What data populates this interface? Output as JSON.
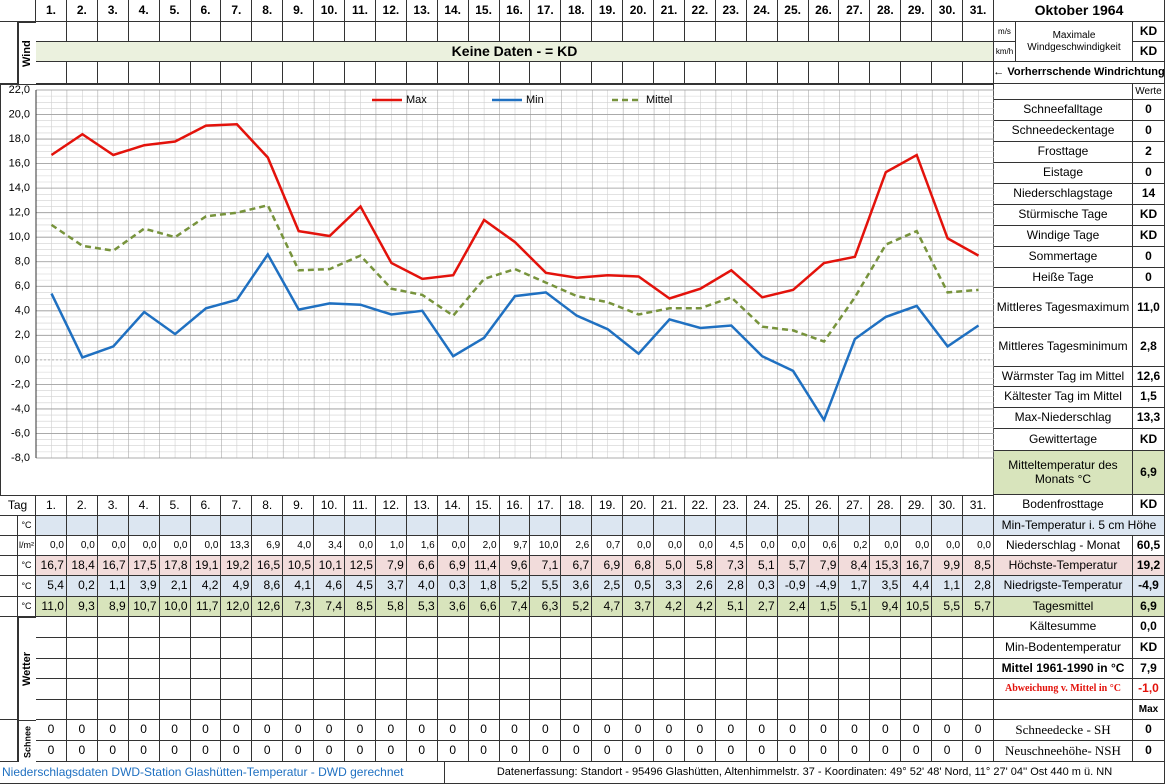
{
  "header": {
    "title": "Oktober 1964",
    "tag_label": "Tag"
  },
  "wind": {
    "label": "Wind",
    "no_data": "Keine Daten -  = KD",
    "units": [
      "m/s",
      "km/h"
    ],
    "max_label": "Maximale Windgeschwindigkeit",
    "values": [
      "KD",
      "KD"
    ],
    "direction": "← Vorherrschende Windrichtung"
  },
  "chart_data": {
    "type": "line",
    "categories": [
      "1.",
      "2.",
      "3.",
      "4.",
      "5.",
      "6.",
      "7.",
      "8.",
      "9.",
      "10.",
      "11.",
      "12.",
      "13.",
      "14.",
      "15.",
      "16.",
      "17.",
      "18.",
      "19.",
      "20.",
      "21.",
      "22.",
      "23.",
      "24.",
      "25.",
      "26.",
      "27.",
      "28.",
      "29.",
      "30.",
      "31."
    ],
    "ylim": [
      -8,
      22
    ],
    "yticks": [
      {
        "value": -8,
        "label": "-8,0"
      },
      {
        "value": -6,
        "label": "-6,0"
      },
      {
        "value": -4,
        "label": "-4,0"
      },
      {
        "value": -2,
        "label": "-2,0"
      },
      {
        "value": 0,
        "label": "0,0"
      },
      {
        "value": 2,
        "label": "2,0"
      },
      {
        "value": 4,
        "label": "4,0"
      },
      {
        "value": 6,
        "label": "6,0"
      },
      {
        "value": 8,
        "label": "8,0"
      },
      {
        "value": 10,
        "label": "10,0"
      },
      {
        "value": 12,
        "label": "12,0"
      },
      {
        "value": 14,
        "label": "14,0"
      },
      {
        "value": 16,
        "label": "16,0"
      },
      {
        "value": 18,
        "label": "18,0"
      },
      {
        "value": 20,
        "label": "20,0"
      },
      {
        "value": 22,
        "label": "22,0"
      }
    ],
    "grid": true,
    "series": [
      {
        "name": "Max",
        "color": "#e3120b",
        "line_style": "solid",
        "values": [
          16.7,
          18.4,
          16.7,
          17.5,
          17.8,
          19.1,
          19.2,
          16.5,
          10.5,
          10.1,
          12.5,
          7.9,
          6.6,
          6.9,
          11.4,
          9.6,
          7.1,
          6.7,
          6.9,
          6.8,
          5.0,
          5.8,
          7.3,
          5.1,
          5.7,
          7.9,
          8.4,
          15.3,
          16.7,
          9.9,
          8.5
        ],
        "value_labels": [
          "16,7",
          "18,4",
          "16,7",
          "17,5",
          "17,8",
          "19,1",
          "19,2",
          "16,5",
          "10,5",
          "10,1",
          "12,5",
          "7,9",
          "6,6",
          "6,9",
          "11,4",
          "9,6",
          "7,1",
          "6,7",
          "6,9",
          "6,8",
          "5,0",
          "5,8",
          "7,3",
          "5,1",
          "5,7",
          "7,9",
          "8,4",
          "15,3",
          "16,7",
          "9,9",
          "8,5"
        ]
      },
      {
        "name": "Min",
        "color": "#1f70c1",
        "line_style": "solid",
        "values": [
          5.4,
          0.2,
          1.1,
          3.9,
          2.1,
          4.2,
          4.9,
          8.6,
          4.1,
          4.6,
          4.5,
          3.7,
          4.0,
          0.3,
          1.8,
          5.2,
          5.5,
          3.6,
          2.5,
          0.5,
          3.3,
          2.6,
          2.8,
          0.3,
          -0.9,
          -4.9,
          1.7,
          3.5,
          4.4,
          1.1,
          2.8
        ],
        "value_labels": [
          "5,4",
          "0,2",
          "1,1",
          "3,9",
          "2,1",
          "4,2",
          "4,9",
          "8,6",
          "4,1",
          "4,6",
          "4,5",
          "3,7",
          "4,0",
          "0,3",
          "1,8",
          "5,2",
          "5,5",
          "3,6",
          "2,5",
          "0,5",
          "3,3",
          "2,6",
          "2,8",
          "0,3",
          "-0,9",
          "-4,9",
          "1,7",
          "3,5",
          "4,4",
          "1,1",
          "2,8"
        ]
      },
      {
        "name": "Mittel",
        "color": "#77933c",
        "line_style": "dashed",
        "values": [
          11.0,
          9.3,
          8.9,
          10.7,
          10.0,
          11.7,
          12.0,
          12.6,
          7.3,
          7.4,
          8.5,
          5.8,
          5.3,
          3.6,
          6.6,
          7.4,
          6.3,
          5.2,
          4.7,
          3.7,
          4.2,
          4.2,
          5.1,
          2.7,
          2.4,
          1.5,
          5.1,
          9.4,
          10.5,
          5.5,
          5.7
        ],
        "value_labels": [
          "11,0",
          "9,3",
          "8,9",
          "10,7",
          "10,0",
          "11,7",
          "12,0",
          "12,6",
          "7,3",
          "7,4",
          "8,5",
          "5,8",
          "5,3",
          "3,6",
          "6,6",
          "7,4",
          "6,3",
          "5,2",
          "4,7",
          "3,7",
          "4,2",
          "4,2",
          "5,1",
          "2,7",
          "2,4",
          "1,5",
          "5,1",
          "9,4",
          "10,5",
          "5,5",
          "5,7"
        ]
      }
    ]
  },
  "stats": {
    "header": "Werte",
    "rows": [
      {
        "label": "Schneefalltage",
        "value": "0"
      },
      {
        "label": "Schneedeckentage",
        "value": "0"
      },
      {
        "label": "Frosttage",
        "value": "2"
      },
      {
        "label": "Eistage",
        "value": "0"
      },
      {
        "label": "Niederschlagstage",
        "value": "14"
      },
      {
        "label": "Stürmische Tage",
        "value": "KD"
      },
      {
        "label": "Windige Tage",
        "value": "KD"
      },
      {
        "label": "Sommertage",
        "value": "0"
      },
      {
        "label": "Heiße Tage",
        "value": "0"
      },
      {
        "label": "Mittleres Tagesmaximum",
        "value": "11,0"
      },
      {
        "label": "Mittleres Tagesminimum",
        "value": "2,8"
      },
      {
        "label": "Wärmster Tag im Mittel",
        "value": "12,6"
      },
      {
        "label": "Kältester Tag im Mittel",
        "value": "1,5"
      },
      {
        "label": "Max-Niederschlag",
        "value": "13,3"
      },
      {
        "label": "Gewittertage",
        "value": "KD"
      },
      {
        "label": "Mitteltemperatur des Monats °C",
        "value": "6,9"
      },
      {
        "label": "Bodenfrosttage",
        "value": "KD"
      }
    ]
  },
  "table": {
    "units": [
      "°C",
      "l/m²",
      "°C",
      "°C",
      "°C"
    ],
    "precipitation": [
      "0,0",
      "0,0",
      "0,0",
      "0,0",
      "0,0",
      "0,0",
      "13,3",
      "6,9",
      "4,0",
      "3,4",
      "0,0",
      "1,0",
      "1,6",
      "0,0",
      "2,0",
      "9,7",
      "10,0",
      "2,6",
      "0,7",
      "0,0",
      "0,0",
      "0,0",
      "4,5",
      "0,0",
      "0,0",
      "0,6",
      "0,2",
      "0,0",
      "0,0",
      "0,0",
      "0,0"
    ],
    "weather_label": "Wetter"
  },
  "summary": [
    {
      "label": "Min-Temperatur i. 5 cm Höhe"
    },
    {
      "label": "Niederschlag - Monat",
      "value": "60,5"
    },
    {
      "label": "Höchste-Temperatur",
      "value": "19,2"
    },
    {
      "label": "Niedrigste-Temperatur",
      "value": "-4,9"
    },
    {
      "label": "Tagesmittel",
      "value": "6,9"
    },
    {
      "label": "Kältesumme",
      "value": "0,0"
    },
    {
      "label": "Min-Bodentemperatur",
      "value": "KD"
    },
    {
      "label": "Mittel 1961-1990 in °C",
      "value": "7,9"
    },
    {
      "label": "Abweichung v. Mittel in °C",
      "value": "-1,0"
    },
    {
      "value": "Max"
    },
    {
      "label": "Schneedecke -  SH",
      "value": 0
    },
    {
      "label": "Neuschneehöhe- NSH",
      "value": 0
    }
  ],
  "snow": {
    "label": "Schnee",
    "rows": [
      [
        0,
        0,
        0,
        0,
        0,
        0,
        0,
        0,
        0,
        0,
        0,
        0,
        0,
        0,
        0,
        0,
        0,
        0,
        0,
        0,
        0,
        0,
        0,
        0,
        0,
        0,
        0,
        0,
        0,
        0,
        0
      ],
      [
        0,
        0,
        0,
        0,
        0,
        0,
        0,
        0,
        0,
        0,
        0,
        0,
        0,
        0,
        0,
        0,
        0,
        0,
        0,
        0,
        0,
        0,
        0,
        0,
        0,
        0,
        0,
        0,
        0,
        0,
        0
      ]
    ]
  },
  "footer": {
    "source": "Niederschlagsdaten DWD-Station Glashütten-Temperatur -  DWD gerechnet",
    "location": "Datenerfassung: Standort -  95496  Glashütten, Altenhimmelstr. 37 - Koordinaten:  49° 52' 48' Nord,   11° 27' 04'' Ost   440 m ü. NN"
  }
}
